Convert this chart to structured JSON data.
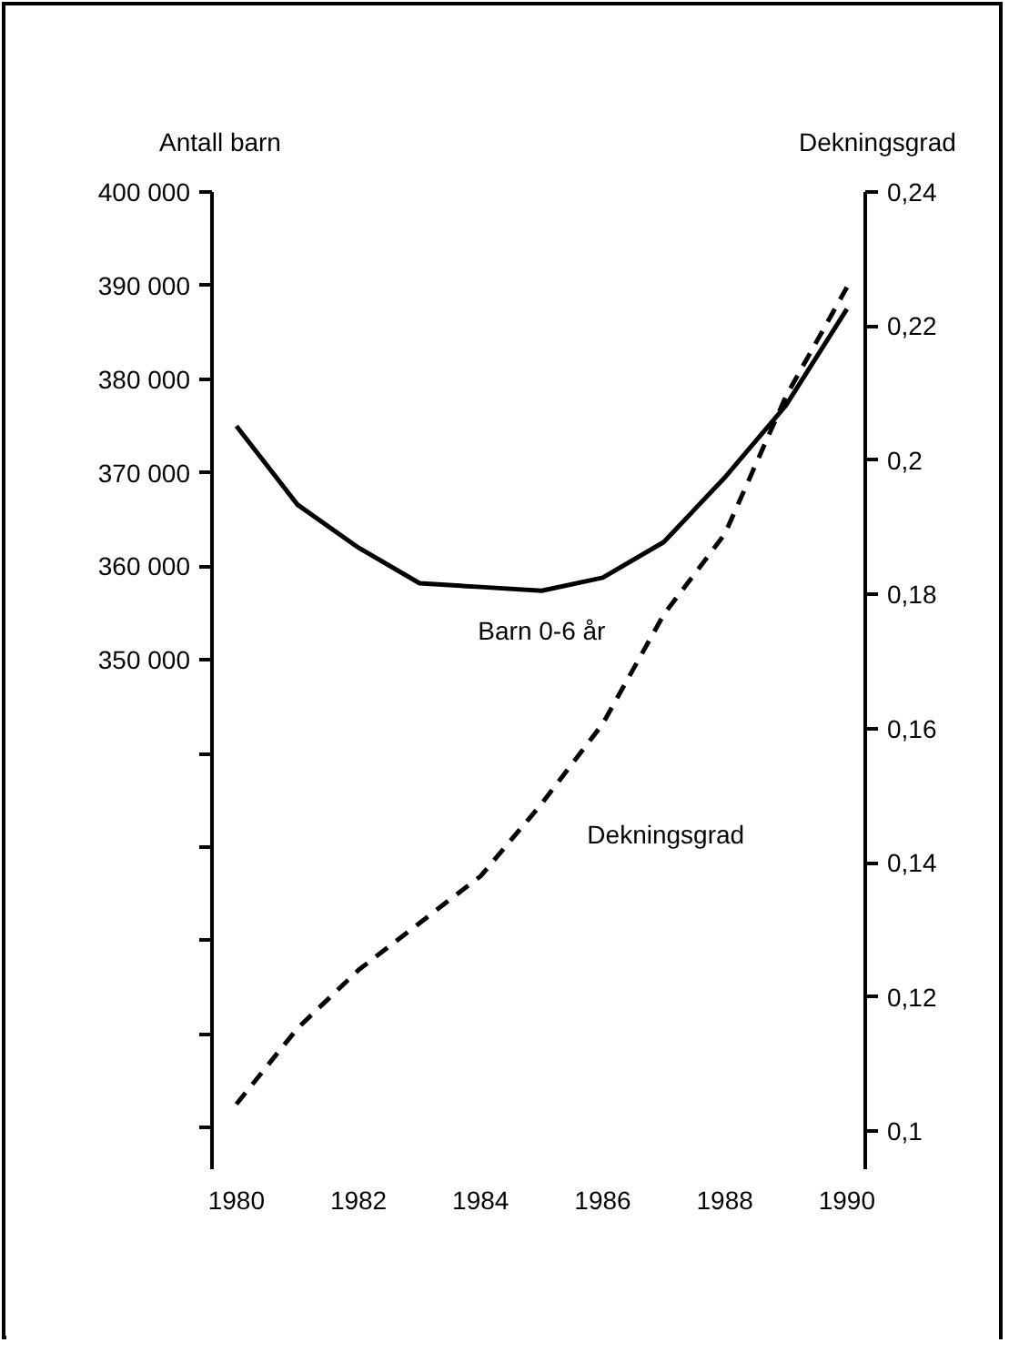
{
  "chart_data": {
    "type": "line",
    "ylabel": "Antall barn",
    "y2label": "Dekningsgrad",
    "x": [
      1980,
      1981,
      1982,
      1983,
      1984,
      1985,
      1986,
      1987,
      1988,
      1989,
      1990
    ],
    "xlim": [
      1979.6,
      1990.3
    ],
    "xticks": [
      1980,
      1982,
      1984,
      1986,
      1988,
      1990
    ],
    "ylim": [
      295600,
      400000
    ],
    "yticks": [
      {
        "value": 400000,
        "label": "400 000"
      },
      {
        "value": 390000,
        "label": "390 000"
      },
      {
        "value": 380000,
        "label": "380 000"
      },
      {
        "value": 370000,
        "label": "370 000"
      },
      {
        "value": 360000,
        "label": "360 000"
      },
      {
        "value": 350000,
        "label": "350 000"
      },
      {
        "value": 340000,
        "label": null
      },
      {
        "value": 330000,
        "label": null
      },
      {
        "value": 320000,
        "label": null
      },
      {
        "value": 310000,
        "label": null
      },
      {
        "value": 300000,
        "label": null
      }
    ],
    "y2lim": [
      0.0943,
      0.24
    ],
    "y2ticks": [
      {
        "value": 0.24,
        "label": "0,24"
      },
      {
        "value": 0.22,
        "label": "0,22"
      },
      {
        "value": 0.2,
        "label": "0,2"
      },
      {
        "value": 0.18,
        "label": "0,18"
      },
      {
        "value": 0.16,
        "label": "0,16"
      },
      {
        "value": 0.14,
        "label": "0,14"
      },
      {
        "value": 0.12,
        "label": "0,12"
      },
      {
        "value": 0.1,
        "label": "0,1"
      }
    ],
    "series": [
      {
        "name": "Barn 0-6 år",
        "color": "#000000",
        "line_style": "solid",
        "values": [
          375000,
          366600,
          362000,
          358200,
          357800,
          357400,
          358800,
          362600,
          369500,
          377200,
          387500
        ]
      },
      {
        "name": "Dekningsgrad",
        "color": "#000000",
        "line_style": "dashed",
        "axis": "y2",
        "values": [
          0.104,
          0.1153,
          0.124,
          0.131,
          0.138,
          0.1488,
          0.1607,
          0.177,
          0.189,
          0.2095,
          0.2258
        ]
      }
    ],
    "grid": false,
    "marker": "none"
  }
}
